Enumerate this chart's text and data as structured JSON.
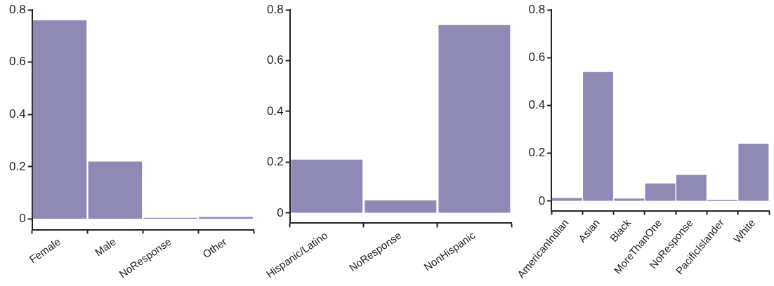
{
  "chart_data": [
    {
      "type": "bar",
      "categories": [
        "Female",
        "Male",
        "NoResponse",
        "Other"
      ],
      "values": [
        0.76,
        0.22,
        0.005,
        0.008
      ],
      "color": "#8e8ab5",
      "ylim": [
        -0.04,
        0.8
      ],
      "yticks": [
        0,
        0.2,
        0.4,
        0.6,
        0.8
      ],
      "grid": false,
      "legend": false
    },
    {
      "type": "bar",
      "categories": [
        "Hispanic/Latino",
        "NoResponse",
        "NonHispanic"
      ],
      "values": [
        0.21,
        0.05,
        0.74
      ],
      "color": "#8e8ab5",
      "ylim": [
        -0.04,
        0.8
      ],
      "yticks": [
        0,
        0.2,
        0.4,
        0.6,
        0.8
      ],
      "grid": false,
      "legend": false
    },
    {
      "type": "bar",
      "categories": [
        "AmericanIndian",
        "Asian",
        "Black",
        "MoreThanOne",
        "NoResponse",
        "PacificIslander",
        "White"
      ],
      "values": [
        0.013,
        0.54,
        0.011,
        0.074,
        0.11,
        0.006,
        0.24
      ],
      "color": "#8e8ab5",
      "ylim": [
        -0.04,
        0.8
      ],
      "yticks": [
        0,
        0.2,
        0.4,
        0.6,
        0.8
      ],
      "grid": false,
      "legend": false
    }
  ]
}
